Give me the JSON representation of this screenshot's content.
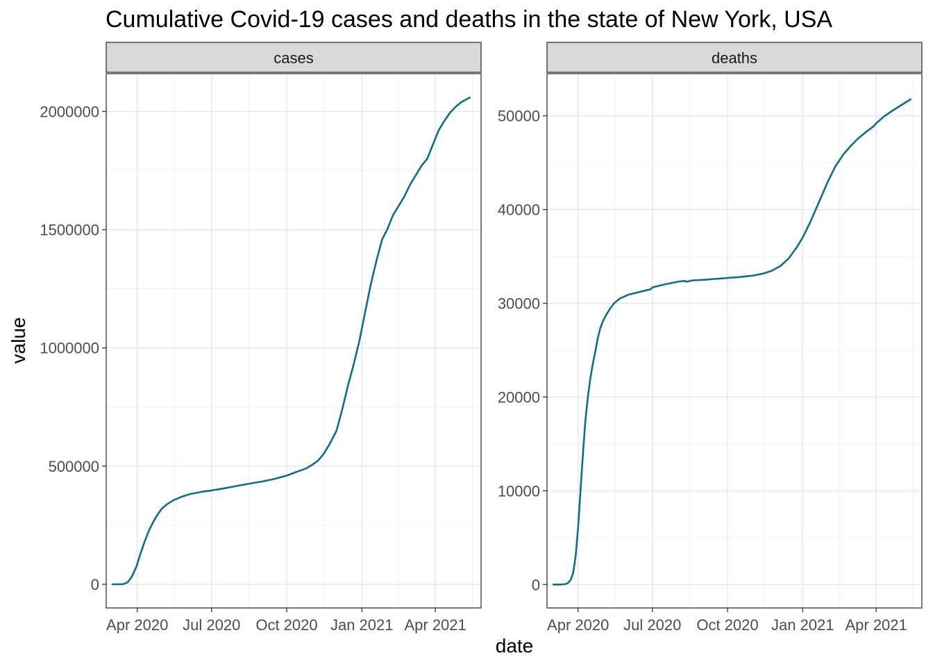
{
  "chart_data": {
    "type": "line",
    "title": "Cumulative Covid-19 cases and deaths in the state of New York, USA",
    "xlabel": "date",
    "ylabel": "value",
    "line_color": "#0b6e8a",
    "grid": true,
    "x_ticks": [
      {
        "date": "2020-04-01",
        "label": "Apr 2020"
      },
      {
        "date": "2020-07-01",
        "label": "Jul 2020"
      },
      {
        "date": "2020-10-01",
        "label": "Oct 2020"
      },
      {
        "date": "2021-01-01",
        "label": "Jan 2021"
      },
      {
        "date": "2021-04-01",
        "label": "Apr 2021"
      }
    ],
    "xlim": [
      "2020-02-23",
      "2021-05-27"
    ],
    "panels": [
      {
        "strip": "cases",
        "ylim": [
          -100000,
          2160000
        ],
        "y_ticks": [
          0,
          500000,
          1000000,
          1500000,
          2000000
        ],
        "y_tick_labels": [
          "0",
          "500000",
          "1000000",
          "1500000",
          "2000000"
        ],
        "series": [
          {
            "x": [
              "2020-03-01",
              "2020-03-08",
              "2020-03-12",
              "2020-03-15",
              "2020-03-20",
              "2020-03-25",
              "2020-03-31",
              "2020-04-05",
              "2020-04-10",
              "2020-04-15",
              "2020-04-20",
              "2020-04-25",
              "2020-05-01",
              "2020-05-08",
              "2020-05-15",
              "2020-05-25",
              "2020-06-05",
              "2020-06-20",
              "2020-07-01",
              "2020-07-15",
              "2020-08-01",
              "2020-08-15",
              "2020-09-01",
              "2020-09-15",
              "2020-10-01",
              "2020-10-15",
              "2020-10-25",
              "2020-11-01",
              "2020-11-08",
              "2020-11-15",
              "2020-11-22",
              "2020-12-01",
              "2020-12-08",
              "2020-12-15",
              "2020-12-22",
              "2020-12-29",
              "2021-01-05",
              "2021-01-12",
              "2021-01-19",
              "2021-01-26",
              "2021-02-01",
              "2021-02-08",
              "2021-02-15",
              "2021-02-22",
              "2021-03-01",
              "2021-03-08",
              "2021-03-15",
              "2021-03-22",
              "2021-03-29",
              "2021-04-05",
              "2021-04-12",
              "2021-04-19",
              "2021-04-26",
              "2021-05-03",
              "2021-05-10",
              "2021-05-14"
            ],
            "y": [
              0,
              100,
              330,
              730,
              8000,
              30000,
              75000,
              130000,
              180000,
              225000,
              260000,
              290000,
              320000,
              340000,
              355000,
              370000,
              382000,
              392000,
              397000,
              405000,
              416000,
              425000,
              435000,
              445000,
              460000,
              478000,
              490000,
              505000,
              522000,
              550000,
              590000,
              650000,
              740000,
              840000,
              930000,
              1030000,
              1150000,
              1270000,
              1370000,
              1460000,
              1500000,
              1560000,
              1600000,
              1640000,
              1690000,
              1730000,
              1770000,
              1800000,
              1860000,
              1920000,
              1960000,
              1995000,
              2020000,
              2040000,
              2053000,
              2060000
            ]
          }
        ]
      },
      {
        "strip": "deaths",
        "ylim": [
          -2500,
          54500
        ],
        "y_ticks": [
          0,
          10000,
          20000,
          30000,
          40000,
          50000
        ],
        "y_tick_labels": [
          "0",
          "10000",
          "20000",
          "30000",
          "40000",
          "50000"
        ],
        "series": [
          {
            "x": [
              "2020-03-01",
              "2020-03-10",
              "2020-03-14",
              "2020-03-17",
              "2020-03-20",
              "2020-03-23",
              "2020-03-26",
              "2020-03-29",
              "2020-04-01",
              "2020-04-04",
              "2020-04-07",
              "2020-04-10",
              "2020-04-13",
              "2020-04-16",
              "2020-04-19",
              "2020-04-22",
              "2020-04-25",
              "2020-04-28",
              "2020-05-01",
              "2020-05-05",
              "2020-05-10",
              "2020-05-15",
              "2020-05-22",
              "2020-06-01",
              "2020-06-15",
              "2020-06-29",
              "2020-07-01",
              "2020-07-15",
              "2020-08-01",
              "2020-08-10",
              "2020-08-11",
              "2020-08-20",
              "2020-09-01",
              "2020-09-15",
              "2020-10-01",
              "2020-10-15",
              "2020-11-01",
              "2020-11-15",
              "2020-11-25",
              "2020-12-05",
              "2020-12-15",
              "2020-12-25",
              "2021-01-01",
              "2021-01-10",
              "2021-01-20",
              "2021-02-01",
              "2021-02-10",
              "2021-02-20",
              "2021-03-01",
              "2021-03-10",
              "2021-03-20",
              "2021-03-29",
              "2021-04-01",
              "2021-04-10",
              "2021-04-20",
              "2021-05-01",
              "2021-05-14"
            ],
            "y": [
              0,
              0,
              20,
              60,
              200,
              500,
              1200,
              3000,
              6000,
              10000,
              14000,
              17500,
              20000,
              22000,
              23500,
              24800,
              26200,
              27300,
              28000,
              28700,
              29400,
              30000,
              30500,
              30900,
              31200,
              31500,
              31700,
              32000,
              32300,
              32400,
              32300,
              32450,
              32500,
              32600,
              32700,
              32800,
              32950,
              33200,
              33500,
              34000,
              34800,
              36000,
              37000,
              38600,
              40600,
              43000,
              44600,
              45900,
              46800,
              47600,
              48300,
              48900,
              49200,
              49900,
              50500,
              51100,
              51800
            ]
          }
        ]
      }
    ]
  }
}
